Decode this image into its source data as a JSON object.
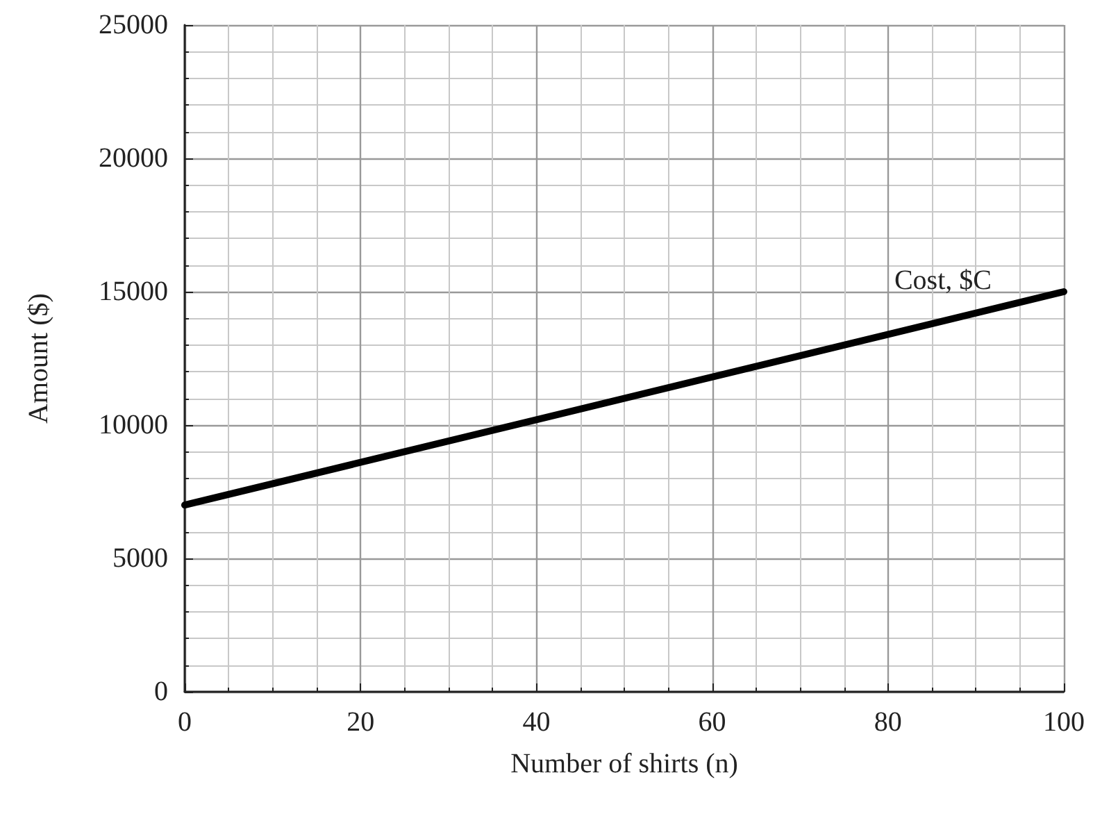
{
  "chart_data": {
    "type": "line",
    "xlabel": "Number of shirts (n)",
    "ylabel": "Amount ($)",
    "x": [
      0,
      100
    ],
    "series": [
      {
        "name": "Cost, $C",
        "color": "#000000",
        "values": [
          7000,
          15000
        ]
      }
    ],
    "xlim": [
      0,
      100
    ],
    "xticks": [
      0,
      20,
      40,
      60,
      80,
      100
    ],
    "ylim": [
      0,
      25000
    ],
    "yticks": [
      0,
      5000,
      10000,
      15000,
      20000,
      25000
    ],
    "grid": true,
    "legend": false,
    "marker": "none",
    "line_style": "solid"
  }
}
